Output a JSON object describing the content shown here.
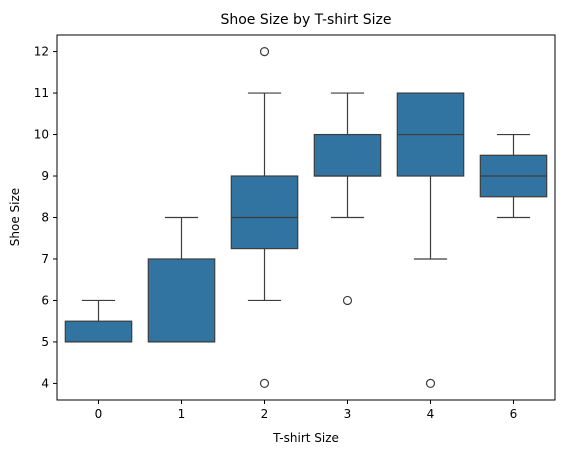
{
  "chart_data": {
    "type": "box",
    "title": "Shoe Size by T-shirt Size",
    "xlabel": "T-shirt Size",
    "ylabel": "Shoe Size",
    "categories": [
      "0",
      "1",
      "2",
      "3",
      "4",
      "6"
    ],
    "ylim": [
      3.6,
      12.4
    ],
    "yticks": [
      "4",
      "5",
      "6",
      "7",
      "8",
      "9",
      "10",
      "11",
      "12"
    ],
    "grid": false,
    "color": "#3274a1",
    "line_color": "#3d3d3d",
    "boxes": [
      {
        "category": "0",
        "whisker_low": 5,
        "q1": 5,
        "median": 5,
        "q3": 5.5,
        "whisker_high": 6,
        "outliers": []
      },
      {
        "category": "1",
        "whisker_low": 5,
        "q1": 5,
        "median": 5,
        "q3": 7,
        "whisker_high": 8,
        "outliers": []
      },
      {
        "category": "2",
        "whisker_low": 6,
        "q1": 7.25,
        "median": 8,
        "q3": 9,
        "whisker_high": 11,
        "outliers": [
          4,
          12
        ]
      },
      {
        "category": "3",
        "whisker_low": 8,
        "q1": 9,
        "median": 9,
        "q3": 10,
        "whisker_high": 11,
        "outliers": [
          6
        ]
      },
      {
        "category": "4",
        "whisker_low": 7,
        "q1": 9,
        "median": 10,
        "q3": 11,
        "whisker_high": 11,
        "outliers": [
          4
        ]
      },
      {
        "category": "6",
        "whisker_low": 8,
        "q1": 8.5,
        "median": 9,
        "q3": 9.5,
        "whisker_high": 10,
        "outliers": []
      }
    ]
  }
}
